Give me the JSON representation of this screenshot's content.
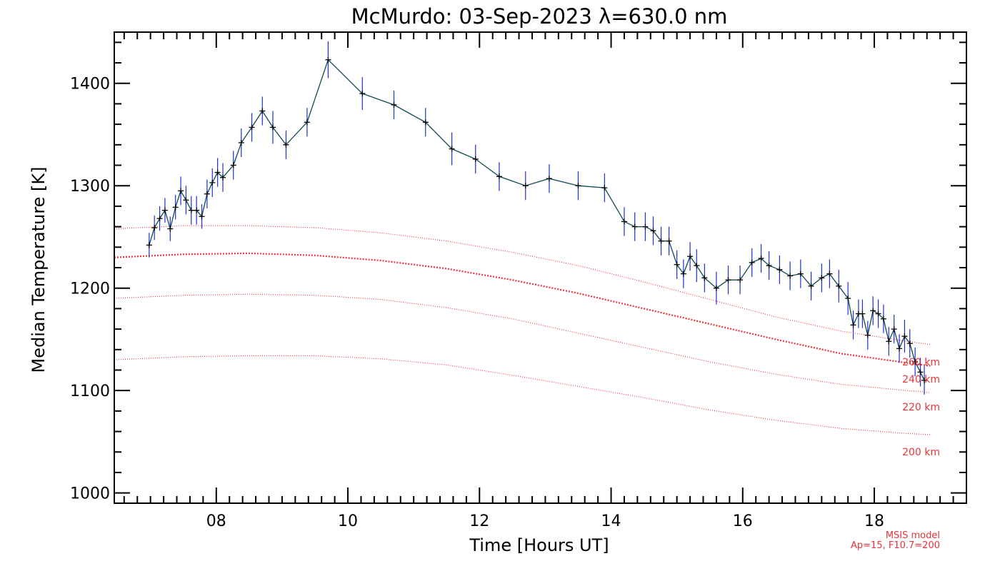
{
  "chart_data": {
    "type": "line",
    "title": "McMurdo: 03-Sep-2023 λ=630.0 nm",
    "xlabel": "Time [Hours UT]",
    "ylabel": "Median Temperature [K]",
    "xlim": [
      6.45,
      19.4
    ],
    "ylim": [
      990,
      1450
    ],
    "x_ticks": [
      8,
      10,
      12,
      14,
      16,
      18
    ],
    "x_tick_labels": [
      "08",
      "10",
      "12",
      "14",
      "16",
      "18"
    ],
    "y_ticks": [
      1000,
      1100,
      1200,
      1300,
      1400
    ],
    "y_tick_labels": [
      "1000",
      "1100",
      "1200",
      "1300",
      "1400"
    ],
    "grid": false,
    "colors": {
      "line": "#0f4a55",
      "error": "#1f2fd6",
      "marker": "#000000",
      "model": "#e8343a"
    },
    "series": [
      {
        "type": "line-errorbar",
        "x": [
          6.98,
          7.06,
          7.14,
          7.22,
          7.3,
          7.38,
          7.46,
          7.54,
          7.62,
          7.7,
          7.78,
          7.86,
          7.94,
          8.02,
          8.1,
          8.26,
          8.38,
          8.54,
          8.7,
          8.86,
          9.06,
          9.38,
          9.7,
          10.22,
          10.7,
          11.18,
          11.58,
          11.94,
          12.3,
          12.7,
          13.06,
          13.5,
          13.9,
          14.2,
          14.36,
          14.52,
          14.64,
          14.76,
          14.88,
          15.0,
          15.1,
          15.2,
          15.3,
          15.42,
          15.6,
          15.78,
          15.96,
          16.14,
          16.28,
          16.4,
          16.56,
          16.72,
          16.88,
          17.04,
          17.2,
          17.32,
          17.46,
          17.6,
          17.68,
          17.76,
          17.82,
          17.9,
          17.98,
          18.06,
          18.14,
          18.22,
          18.3,
          18.38,
          18.46,
          18.54,
          18.62,
          18.7,
          18.76
        ],
        "y": [
          1242,
          1259,
          1268,
          1276,
          1258,
          1279,
          1295,
          1286,
          1276,
          1276,
          1270,
          1292,
          1303,
          1313,
          1308,
          1320,
          1342,
          1357,
          1373,
          1357,
          1340,
          1362,
          1423,
          1390,
          1379,
          1362,
          1336,
          1326,
          1309,
          1300,
          1307,
          1300,
          1298,
          1265,
          1260,
          1260,
          1256,
          1246,
          1246,
          1223,
          1214,
          1231,
          1222,
          1210,
          1200,
          1208,
          1208,
          1225,
          1229,
          1222,
          1218,
          1212,
          1214,
          1202,
          1210,
          1214,
          1202,
          1190,
          1164,
          1175,
          1175,
          1154,
          1178,
          1175,
          1170,
          1148,
          1160,
          1141,
          1153,
          1146,
          1128,
          1118,
          1110
        ],
        "err": [
          12,
          12,
          12,
          12,
          12,
          12,
          14,
          14,
          14,
          14,
          12,
          14,
          14,
          14,
          14,
          14,
          14,
          14,
          14,
          16,
          14,
          14,
          18,
          16,
          14,
          14,
          16,
          14,
          14,
          14,
          14,
          14,
          14,
          14,
          14,
          14,
          14,
          14,
          14,
          14,
          14,
          14,
          16,
          14,
          16,
          14,
          14,
          14,
          14,
          14,
          14,
          14,
          14,
          14,
          14,
          14,
          16,
          16,
          14,
          14,
          14,
          14,
          14,
          14,
          14,
          14,
          14,
          14,
          16,
          14,
          14,
          14,
          14
        ]
      }
    ],
    "model_curves": [
      {
        "name": "260 km",
        "x": [
          6.45,
          7.5,
          8.5,
          9.5,
          10.5,
          11.5,
          12.5,
          13.5,
          14.5,
          15.5,
          16.5,
          17.5,
          18.5,
          18.85
        ],
        "y": [
          1258,
          1261,
          1261,
          1259,
          1254,
          1246,
          1235,
          1222,
          1206,
          1189,
          1172,
          1158,
          1148,
          1145
        ]
      },
      {
        "name": "240 km",
        "x": [
          6.45,
          7.5,
          8.5,
          9.5,
          10.5,
          11.5,
          12.5,
          13.5,
          14.5,
          15.5,
          16.5,
          17.5,
          18.5,
          18.85
        ],
        "y": [
          1230,
          1233,
          1234,
          1232,
          1227,
          1219,
          1208,
          1195,
          1180,
          1165,
          1150,
          1136,
          1127,
          1124
        ]
      },
      {
        "name": "220 km",
        "x": [
          6.45,
          7.5,
          8.5,
          9.5,
          10.5,
          11.5,
          12.5,
          13.5,
          14.5,
          15.5,
          16.5,
          17.5,
          18.5,
          18.85
        ],
        "y": [
          1190,
          1193,
          1194,
          1193,
          1189,
          1181,
          1170,
          1156,
          1142,
          1128,
          1116,
          1106,
          1100,
          1098
        ]
      },
      {
        "name": "200 km",
        "x": [
          6.45,
          7.5,
          8.5,
          9.5,
          10.5,
          11.5,
          12.5,
          13.5,
          14.5,
          15.5,
          16.5,
          17.5,
          18.5,
          18.85
        ],
        "y": [
          1130,
          1133,
          1134,
          1134,
          1131,
          1125,
          1115,
          1104,
          1093,
          1081,
          1071,
          1063,
          1058,
          1057
        ]
      }
    ],
    "annotations": {
      "model_line1": "MSIS model",
      "model_line2": "Ap=15, F10.7=200",
      "curve_labels": [
        "260 km",
        "240 km",
        "220 km",
        "200 km"
      ]
    }
  }
}
